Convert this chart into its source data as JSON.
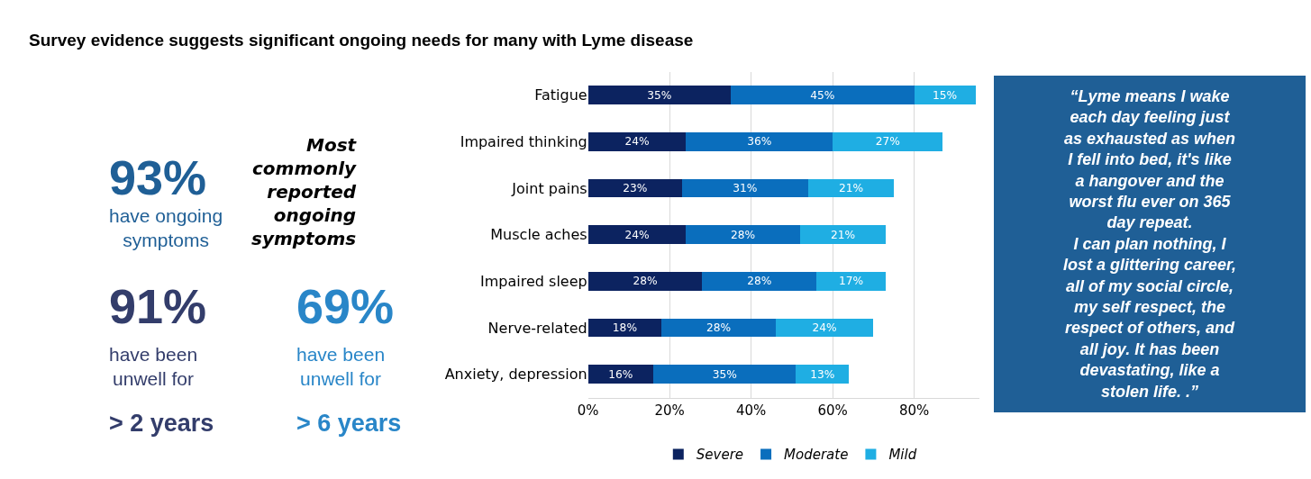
{
  "chart_data": {
    "type": "bar",
    "orientation": "horizontal",
    "stacked": true,
    "title": "Survey evidence suggests significant ongoing needs for many with Lyme disease",
    "categories": [
      "Fatigue",
      "Impaired thinking",
      "Joint pains",
      "Muscle aches",
      "Impaired sleep",
      "Nerve-related",
      "Anxiety, depression"
    ],
    "series": [
      {
        "name": "Severe",
        "color": "#0c2360",
        "values": [
          35,
          24,
          23,
          24,
          28,
          18,
          16
        ],
        "value_labels": [
          "35%",
          "24%",
          "23%",
          "24%",
          "28%",
          "18%",
          "16%"
        ]
      },
      {
        "name": "Moderate",
        "color": "#0a6ebd",
        "values": [
          45,
          36,
          31,
          28,
          28,
          28,
          35
        ],
        "value_labels": [
          "45%",
          "36%",
          "31%",
          "28%",
          "28%",
          "28%",
          "35%"
        ]
      },
      {
        "name": "Mild",
        "color": "#1faee3",
        "values": [
          15,
          27,
          21,
          21,
          17,
          24,
          13
        ],
        "value_labels": [
          "15%",
          "27%",
          "21%",
          "21%",
          "17%",
          "24%",
          "13%"
        ]
      }
    ],
    "xlim": [
      0,
      96
    ],
    "xticks": [
      {
        "value": 0,
        "label": "0%"
      },
      {
        "value": 20,
        "label": "20%"
      },
      {
        "value": 40,
        "label": "40%"
      },
      {
        "value": 60,
        "label": "60%"
      },
      {
        "value": 80,
        "label": "80%"
      }
    ],
    "grid": "x",
    "legend": "bottom",
    "annotations": [
      "93%",
      "have ongoing\nsymptoms",
      "91%",
      "have been\nunwell for",
      "> 2 years",
      "69%",
      "have been\nunwell for",
      "> 6 years",
      "Most\ncommonly\nreported\nongoing\nsymptoms",
      "“Lyme means I wake\neach day feeling just\nas exhausted as when\nI fell into bed, it's like\na hangover and the\nworst flu ever on 365\nday repeat.\nI can plan nothing, I\nlost a glittering career,\nall of my social circle,\nmy self respect, the\nrespect of others, and\nall joy. It has been\ndevastating, like a\nstolen life. .”"
    ]
  }
}
